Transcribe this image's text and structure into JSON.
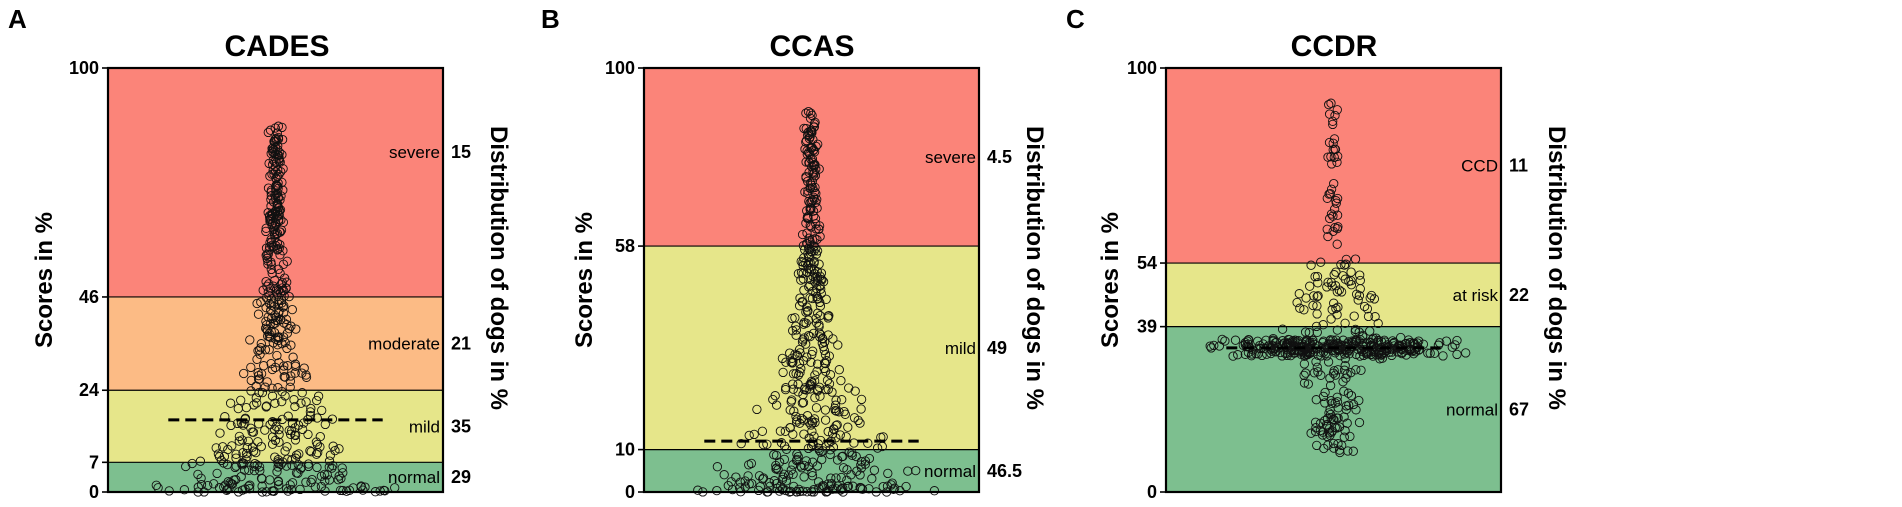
{
  "chart_data": [
    {
      "type": "scatter",
      "panel_label": "A",
      "title": "CADES",
      "ylabel": "Scores in %",
      "y2label": "Distribution of dogs in %",
      "ylim": [
        0,
        100
      ],
      "yticks": [
        "0",
        "7",
        "24",
        "46",
        "100"
      ],
      "bands": [
        {
          "from": 0,
          "to": 7,
          "label": "normal",
          "pct": "29",
          "color": "#7dbf8f"
        },
        {
          "from": 7,
          "to": 24,
          "label": "mild",
          "pct": "35",
          "color": "#e6e68a"
        },
        {
          "from": 24,
          "to": 46,
          "label": "moderate",
          "pct": "21",
          "color": "#fcbb85"
        },
        {
          "from": 46,
          "to": 100,
          "label": "severe",
          "pct": "15",
          "color": "#fb8479"
        }
      ],
      "dashed_line_y": 17,
      "points": {
        "count": 520,
        "min": 0,
        "max": 87,
        "shape": 1.6
      }
    },
    {
      "type": "scatter",
      "panel_label": "B",
      "title": "CCAS",
      "ylabel": "Scores in %",
      "y2label": "Distribution of dogs in %",
      "ylim": [
        0,
        100
      ],
      "yticks": [
        "0",
        "10",
        "58",
        "100"
      ],
      "bands": [
        {
          "from": 0,
          "to": 10,
          "label": "normal",
          "pct": "46.5",
          "color": "#7dbf8f"
        },
        {
          "from": 10,
          "to": 58,
          "label": "mild",
          "pct": "49",
          "color": "#e6e68a"
        },
        {
          "from": 58,
          "to": 100,
          "label": "severe",
          "pct": "4.5",
          "color": "#fb8479"
        }
      ],
      "dashed_line_y": 12,
      "points": {
        "count": 520,
        "min": 0,
        "max": 90,
        "shape": 1.9
      }
    },
    {
      "type": "scatter",
      "panel_label": "C",
      "title": "CCDR",
      "ylabel": "Scores in %",
      "y2label": "Distribution of dogs in %",
      "ylim": [
        0,
        100
      ],
      "yticks": [
        "0",
        "39",
        "54",
        "100"
      ],
      "bands": [
        {
          "from": 0,
          "to": 39,
          "label": "normal",
          "pct": "67",
          "color": "#7dbf8f"
        },
        {
          "from": 39,
          "to": 54,
          "label": "at risk",
          "pct": "22",
          "color": "#e6e68a"
        },
        {
          "from": 54,
          "to": 100,
          "label": "CCD",
          "pct": "11",
          "color": "#fb8479"
        }
      ],
      "dashed_line_y": 34,
      "points": {
        "count": 520,
        "min": 9,
        "max": 92,
        "mode": 34,
        "shape": 3.0
      }
    }
  ]
}
